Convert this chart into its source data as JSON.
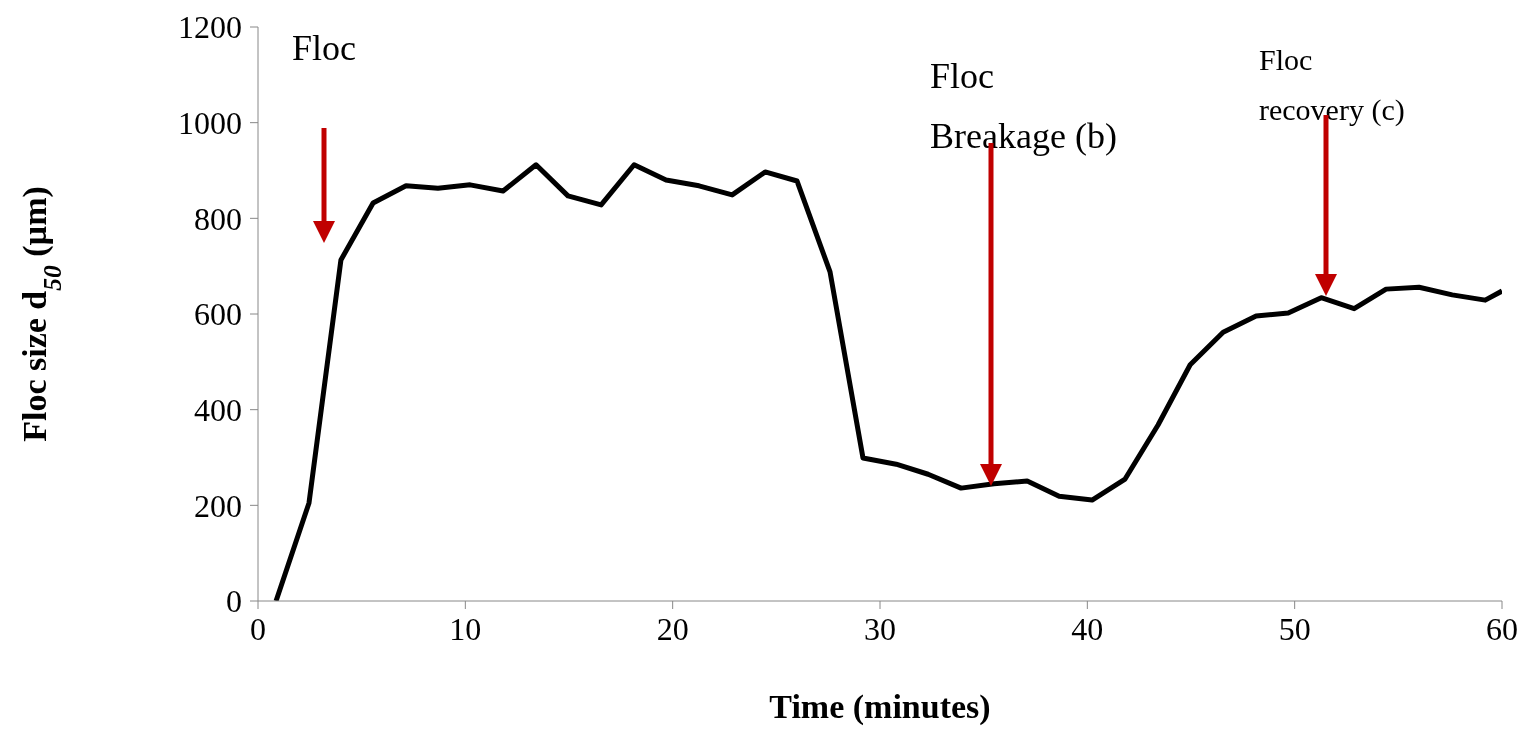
{
  "chart_data": {
    "type": "line",
    "xlabel": "Time (minutes)",
    "ylabel": "Floc size d$_{50}$  (µm)",
    "x": [
      0.87,
      2.46,
      4.0,
      5.55,
      7.14,
      8.68,
      10.23,
      11.82,
      13.41,
      14.95,
      16.55,
      18.14,
      19.68,
      21.27,
      22.87,
      24.46,
      26.0,
      27.59,
      29.18,
      30.78,
      32.32,
      33.91,
      35.5,
      37.1,
      38.64,
      40.23,
      41.82,
      43.41,
      44.96,
      46.55,
      48.14,
      49.69,
      51.28,
      52.87,
      54.41,
      56.0,
      57.6,
      59.19,
      60
    ],
    "series": [
      {
        "color": "#000000",
        "values": [
          0,
          205,
          713,
          832,
          868,
          863,
          870,
          857,
          912,
          847,
          828,
          912,
          880,
          868,
          849,
          897,
          878,
          688,
          299,
          286,
          265,
          236,
          245,
          251,
          219,
          211,
          255,
          368,
          494,
          562,
          596,
          602,
          634,
          611,
          652,
          656,
          640,
          629,
          648
        ]
      }
    ],
    "xlim": [
      0,
      60
    ],
    "xticks": [
      0,
      10,
      20,
      30,
      40,
      50,
      60
    ],
    "ylim": [
      0,
      1200
    ],
    "yticks": [
      0,
      200,
      400,
      600,
      800,
      1000,
      1200
    ],
    "grid": false,
    "legend": false,
    "marker": "none",
    "line_style": "solid",
    "annotations": [
      "Floc",
      "Floc\nBreakage (b)",
      "Floc\nrecovery (c)"
    ]
  }
}
